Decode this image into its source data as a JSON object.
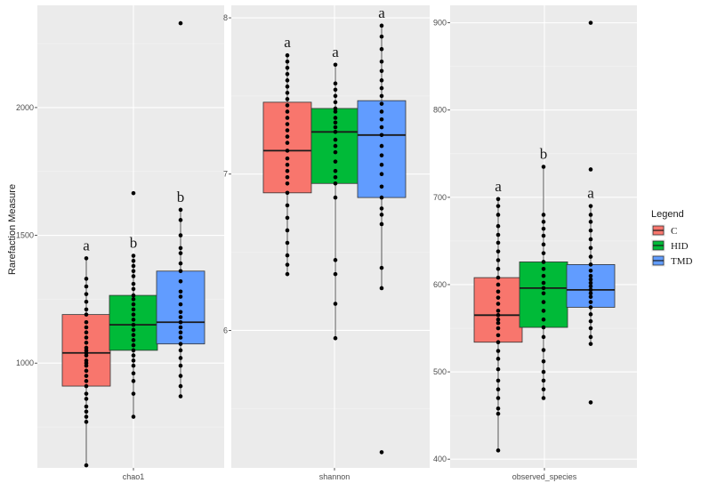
{
  "chart_data": {
    "type": "boxplot",
    "ylabel": "Rarefaction Measure",
    "legend": {
      "title": "Legend",
      "placement": "right",
      "entries": [
        {
          "name": "C",
          "color": "#F8766D"
        },
        {
          "name": "HID",
          "color": "#00BA38"
        },
        {
          "name": "TMD",
          "color": "#619CFF"
        }
      ]
    },
    "grid": true,
    "panels": [
      {
        "name": "chao1",
        "ylim": [
          590,
          2400
        ],
        "yticks": [
          1000,
          1500,
          2000
        ],
        "groups": [
          {
            "name": "C",
            "q1": 910,
            "median": 1040,
            "q3": 1190,
            "whisker_low": 600,
            "whisker_high": 1410,
            "points": [
              600,
              770,
              790,
              810,
              830,
              860,
              880,
              910,
              930,
              950,
              970,
              990,
              1000,
              1010,
              1030,
              1040,
              1050,
              1060,
              1080,
              1100,
              1120,
              1140,
              1160,
              1190,
              1210,
              1240,
              1270,
              1300,
              1330,
              1410
            ],
            "label": "a"
          },
          {
            "name": "HID",
            "q1": 1050,
            "median": 1150,
            "q3": 1265,
            "whisker_low": 790,
            "whisker_high": 1420,
            "points": [
              790,
              880,
              930,
              960,
              990,
              1010,
              1030,
              1050,
              1070,
              1090,
              1110,
              1130,
              1150,
              1170,
              1190,
              1210,
              1230,
              1250,
              1265,
              1290,
              1310,
              1340,
              1360,
              1380,
              1400,
              1420,
              1665
            ],
            "label": "b"
          },
          {
            "name": "TMD",
            "q1": 1075,
            "median": 1160,
            "q3": 1360,
            "whisker_low": 870,
            "whisker_high": 1600,
            "points": [
              870,
              910,
              950,
              990,
              1020,
              1050,
              1075,
              1100,
              1120,
              1140,
              1160,
              1180,
              1200,
              1230,
              1260,
              1280,
              1320,
              1360,
              1390,
              1430,
              1450,
              1500,
              1560,
              1600,
              2330
            ],
            "label": "b"
          }
        ]
      },
      {
        "name": "shannon",
        "ylim": [
          5.12,
          8.08
        ],
        "yticks": [
          6,
          7,
          8
        ],
        "groups": [
          {
            "name": "C",
            "q1": 6.88,
            "median": 7.15,
            "q3": 7.46,
            "whisker_low": 6.36,
            "whisker_high": 7.76,
            "points": [
              6.36,
              6.42,
              6.48,
              6.56,
              6.64,
              6.72,
              6.8,
              6.88,
              6.94,
              6.98,
              7.02,
              7.06,
              7.1,
              7.15,
              7.2,
              7.24,
              7.28,
              7.32,
              7.36,
              7.4,
              7.44,
              7.48,
              7.52,
              7.56,
              7.6,
              7.64,
              7.68,
              7.72,
              7.76
            ],
            "label": "a"
          },
          {
            "name": "HID",
            "q1": 6.94,
            "median": 7.27,
            "q3": 7.42,
            "whisker_low": 5.95,
            "whisker_high": 7.7,
            "points": [
              5.95,
              6.17,
              6.36,
              6.45,
              6.85,
              6.94,
              6.98,
              7.02,
              7.08,
              7.14,
              7.18,
              7.22,
              7.27,
              7.3,
              7.33,
              7.36,
              7.4,
              7.42,
              7.46,
              7.5,
              7.54,
              7.58,
              7.7
            ],
            "label": "a"
          },
          {
            "name": "TMD",
            "q1": 6.85,
            "median": 7.25,
            "q3": 7.47,
            "whisker_low": 6.27,
            "whisker_high": 7.95,
            "points": [
              5.22,
              6.27,
              6.4,
              6.68,
              6.74,
              6.78,
              6.85,
              6.92,
              7.0,
              7.06,
              7.12,
              7.18,
              7.25,
              7.3,
              7.35,
              7.4,
              7.45,
              7.5,
              7.55,
              7.6,
              7.66,
              7.72,
              7.8,
              7.88,
              7.95
            ],
            "label": "a"
          }
        ]
      },
      {
        "name": "observed_species",
        "ylim": [
          390,
          920
        ],
        "yticks": [
          400,
          500,
          600,
          700,
          800,
          900
        ],
        "groups": [
          {
            "name": "C",
            "q1": 534,
            "median": 565,
            "q3": 608,
            "whisker_low": 410,
            "whisker_high": 698,
            "points": [
              410,
              452,
              458,
              470,
              480,
              490,
              503,
              515,
              524,
              534,
              542,
              550,
              556,
              560,
              565,
              570,
              578,
              585,
              592,
              600,
              608,
              618,
              628,
              638,
              648,
              657,
              667,
              680,
              690,
              698
            ],
            "label": "a"
          },
          {
            "name": "HID",
            "q1": 551,
            "median": 596,
            "q3": 626,
            "whisker_low": 470,
            "whisker_high": 735,
            "points": [
              470,
              480,
              490,
              500,
              512,
              525,
              540,
              551,
              560,
              570,
              580,
              590,
              596,
              602,
              610,
              618,
              626,
              636,
              646,
              656,
              664,
              672,
              680,
              735
            ],
            "label": "b"
          },
          {
            "name": "TMD",
            "q1": 574,
            "median": 594,
            "q3": 623,
            "whisker_low": 532,
            "whisker_high": 690,
            "points": [
              465,
              532,
              540,
              550,
              558,
              566,
              574,
              580,
              586,
              590,
              594,
              598,
              602,
              606,
              610,
              616,
              623,
              632,
              642,
              652,
              662,
              672,
              680,
              690,
              732,
              900
            ],
            "label": "a"
          }
        ]
      }
    ]
  }
}
